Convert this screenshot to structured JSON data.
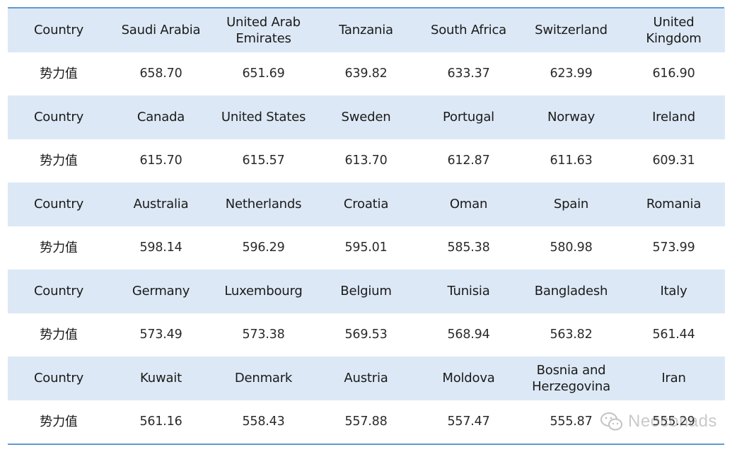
{
  "table": {
    "rows": [
      {
        "type": "country",
        "header": "Country",
        "cells": [
          "Saudi Arabia",
          "United Arab Emirates",
          "Tanzania",
          "South Africa",
          "Switzerland",
          "United Kingdom"
        ]
      },
      {
        "type": "value",
        "header": "势力值",
        "cells": [
          "658.70",
          "651.69",
          "639.82",
          "633.37",
          "623.99",
          "616.90"
        ]
      },
      {
        "type": "country",
        "header": "Country",
        "cells": [
          "Canada",
          "United States",
          "Sweden",
          "Portugal",
          "Norway",
          "Ireland"
        ]
      },
      {
        "type": "value",
        "header": "势力值",
        "cells": [
          "615.70",
          "615.57",
          "613.70",
          "612.87",
          "611.63",
          "609.31"
        ]
      },
      {
        "type": "country",
        "header": "Country",
        "cells": [
          "Australia",
          "Netherlands",
          "Croatia",
          "Oman",
          "Spain",
          "Romania"
        ]
      },
      {
        "type": "value",
        "header": "势力值",
        "cells": [
          "598.14",
          "596.29",
          "595.01",
          "585.38",
          "580.98",
          "573.99"
        ]
      },
      {
        "type": "country",
        "header": "Country",
        "cells": [
          "Germany",
          "Luxembourg",
          "Belgium",
          "Tunisia",
          "Bangladesh",
          "Italy"
        ]
      },
      {
        "type": "value",
        "header": "势力值",
        "cells": [
          "573.49",
          "573.38",
          "569.53",
          "568.94",
          "563.82",
          "561.44"
        ]
      },
      {
        "type": "country",
        "header": "Country",
        "cells": [
          "Kuwait",
          "Denmark",
          "Austria",
          "Moldova",
          "Bosnia and Herzegovina",
          "Iran"
        ]
      },
      {
        "type": "value",
        "header": "势力值",
        "cells": [
          "561.16",
          "558.43",
          "557.88",
          "557.47",
          "555.87",
          "555.29"
        ]
      }
    ]
  },
  "watermark": {
    "text": "Neoconads",
    "icon": "wechat-icon"
  }
}
